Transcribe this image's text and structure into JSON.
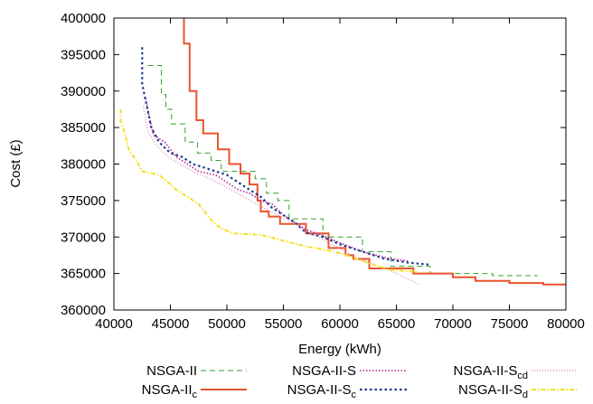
{
  "chart_data": {
    "type": "line",
    "title": "",
    "xlabel": "Energy (kWh)",
    "ylabel": "Cost (£)",
    "xlim": [
      40000,
      80000
    ],
    "ylim": [
      360000,
      400000
    ],
    "xticks": [
      40000,
      45000,
      50000,
      55000,
      60000,
      65000,
      70000,
      75000,
      80000
    ],
    "yticks": [
      360000,
      365000,
      370000,
      375000,
      380000,
      385000,
      390000,
      395000,
      400000
    ],
    "grid": false,
    "legend_position": "bottom",
    "series": [
      {
        "name": "NSGA-II",
        "label_main": "NSGA-II",
        "label_sub": "",
        "color": "#33a02c",
        "dash": "6,4",
        "width": 1,
        "points": [
          [
            43000,
            393500
          ],
          [
            44200,
            393500
          ],
          [
            44200,
            389500
          ],
          [
            44600,
            389500
          ],
          [
            44600,
            387500
          ],
          [
            45100,
            387500
          ],
          [
            45100,
            385500
          ],
          [
            46300,
            385500
          ],
          [
            46300,
            383000
          ],
          [
            47400,
            383000
          ],
          [
            47400,
            381500
          ],
          [
            48600,
            381500
          ],
          [
            48600,
            380500
          ],
          [
            49500,
            380500
          ],
          [
            49500,
            379000
          ],
          [
            52500,
            379000
          ],
          [
            52500,
            378000
          ],
          [
            53500,
            378000
          ],
          [
            53500,
            376000
          ],
          [
            54500,
            376000
          ],
          [
            54500,
            375000
          ],
          [
            55500,
            375000
          ],
          [
            55500,
            372500
          ],
          [
            58500,
            372500
          ],
          [
            58500,
            370000
          ],
          [
            62000,
            370000
          ],
          [
            62000,
            368000
          ],
          [
            64500,
            368000
          ],
          [
            64500,
            366000
          ],
          [
            68000,
            366000
          ],
          [
            68000,
            365000
          ],
          [
            73500,
            365000
          ],
          [
            73500,
            364700
          ],
          [
            77500,
            364700
          ]
        ]
      },
      {
        "name": "NSGA-IIc",
        "label_main": "NSGA-II",
        "label_sub": "c",
        "color": "#e8532b",
        "dash": "",
        "width": 2,
        "points": [
          [
            46200,
            400000
          ],
          [
            46200,
            396500
          ],
          [
            46700,
            396500
          ],
          [
            46700,
            390000
          ],
          [
            47300,
            390000
          ],
          [
            47300,
            386000
          ],
          [
            47900,
            386000
          ],
          [
            47900,
            384200
          ],
          [
            49200,
            384200
          ],
          [
            49200,
            382000
          ],
          [
            50200,
            382000
          ],
          [
            50200,
            380000
          ],
          [
            51200,
            380000
          ],
          [
            51200,
            378700
          ],
          [
            52000,
            378700
          ],
          [
            52000,
            377200
          ],
          [
            52700,
            377200
          ],
          [
            52700,
            375000
          ],
          [
            53000,
            375000
          ],
          [
            53000,
            373500
          ],
          [
            53700,
            373500
          ],
          [
            53700,
            372800
          ],
          [
            54700,
            372800
          ],
          [
            54700,
            371800
          ],
          [
            57000,
            371800
          ],
          [
            57000,
            370500
          ],
          [
            59000,
            370500
          ],
          [
            59000,
            368500
          ],
          [
            60500,
            368500
          ],
          [
            60500,
            367500
          ],
          [
            61200,
            367500
          ],
          [
            61200,
            367000
          ],
          [
            62600,
            367000
          ],
          [
            62600,
            365700
          ],
          [
            66500,
            365700
          ],
          [
            66500,
            365000
          ],
          [
            70000,
            365000
          ],
          [
            70000,
            364500
          ],
          [
            72000,
            364500
          ],
          [
            72000,
            364000
          ],
          [
            75000,
            364000
          ],
          [
            75000,
            363700
          ],
          [
            78000,
            363700
          ],
          [
            78000,
            363500
          ],
          [
            80000,
            363500
          ]
        ]
      },
      {
        "name": "NSGA-II-S",
        "label_main": "NSGA-II-S",
        "label_sub": "",
        "color": "#b2258f",
        "dash": "1.5,2",
        "width": 1.6,
        "points": [
          [
            42800,
            389000
          ],
          [
            43200,
            386000
          ],
          [
            43500,
            384000
          ],
          [
            44500,
            383000
          ],
          [
            45500,
            381000
          ],
          [
            46500,
            380000
          ],
          [
            47500,
            379000
          ],
          [
            49000,
            378500
          ],
          [
            50000,
            377500
          ],
          [
            51000,
            376500
          ],
          [
            52000,
            376000
          ],
          [
            53000,
            375000
          ],
          [
            54000,
            374500
          ],
          [
            55000,
            373000
          ],
          [
            56000,
            372000
          ],
          [
            57000,
            371000
          ],
          [
            58500,
            370200
          ],
          [
            60000,
            369200
          ],
          [
            62000,
            368000
          ],
          [
            64000,
            367200
          ],
          [
            66000,
            366700
          ]
        ]
      },
      {
        "name": "NSGA-II-Sc",
        "label_main": "NSGA-II-S",
        "label_sub": "c",
        "color": "#1f3a93",
        "dash": "2.5,3",
        "width": 2.2,
        "points": [
          [
            42500,
            396000
          ],
          [
            42500,
            391000
          ],
          [
            42900,
            388000
          ],
          [
            43300,
            385000
          ],
          [
            44000,
            383000
          ],
          [
            45000,
            381500
          ],
          [
            46000,
            381000
          ],
          [
            47000,
            380000
          ],
          [
            48000,
            379500
          ],
          [
            50000,
            378500
          ],
          [
            51000,
            377500
          ],
          [
            52000,
            376500
          ],
          [
            53000,
            375500
          ],
          [
            54000,
            374000
          ],
          [
            55000,
            373000
          ],
          [
            56000,
            372000
          ],
          [
            57000,
            370600
          ],
          [
            58500,
            370000
          ],
          [
            60000,
            369000
          ],
          [
            62000,
            368000
          ],
          [
            64000,
            367000
          ],
          [
            66000,
            366500
          ],
          [
            68000,
            366200
          ]
        ]
      },
      {
        "name": "NSGA-II-Scd",
        "label_main": "NSGA-II-S",
        "label_sub": "cd",
        "color": "#e07bb5",
        "dash": "1,2",
        "width": 1.2,
        "points": [
          [
            42600,
            388000
          ],
          [
            43000,
            384500
          ],
          [
            43800,
            382500
          ],
          [
            44800,
            381000
          ],
          [
            45800,
            380000
          ],
          [
            47000,
            379000
          ],
          [
            48500,
            378000
          ],
          [
            50000,
            376800
          ],
          [
            51500,
            375500
          ],
          [
            53000,
            374200
          ],
          [
            54500,
            373000
          ],
          [
            56000,
            371800
          ],
          [
            57500,
            370500
          ],
          [
            59000,
            369200
          ],
          [
            60500,
            368000
          ],
          [
            62000,
            366800
          ],
          [
            63500,
            366000
          ],
          [
            65000,
            365000
          ],
          [
            67000,
            363500
          ]
        ]
      },
      {
        "name": "NSGA-II-Sd",
        "label_main": "NSGA-II-S",
        "label_sub": "d",
        "color": "#f2e125",
        "dash": "5,2,1.5,2",
        "width": 2,
        "points": [
          [
            40600,
            387500
          ],
          [
            40600,
            386000
          ],
          [
            41000,
            384000
          ],
          [
            41300,
            382000
          ],
          [
            42000,
            380500
          ],
          [
            42500,
            379000
          ],
          [
            44000,
            378500
          ],
          [
            44800,
            377500
          ],
          [
            45500,
            376500
          ],
          [
            46500,
            375500
          ],
          [
            47500,
            374500
          ],
          [
            48000,
            373500
          ],
          [
            48800,
            372000
          ],
          [
            49500,
            371200
          ],
          [
            50500,
            370500
          ],
          [
            53000,
            370300
          ],
          [
            55000,
            369500
          ],
          [
            57000,
            368700
          ],
          [
            58500,
            368300
          ],
          [
            60000,
            367800
          ],
          [
            61500,
            367000
          ],
          [
            63000,
            366200
          ],
          [
            64500,
            365500
          ],
          [
            67000,
            365200
          ]
        ]
      }
    ]
  }
}
